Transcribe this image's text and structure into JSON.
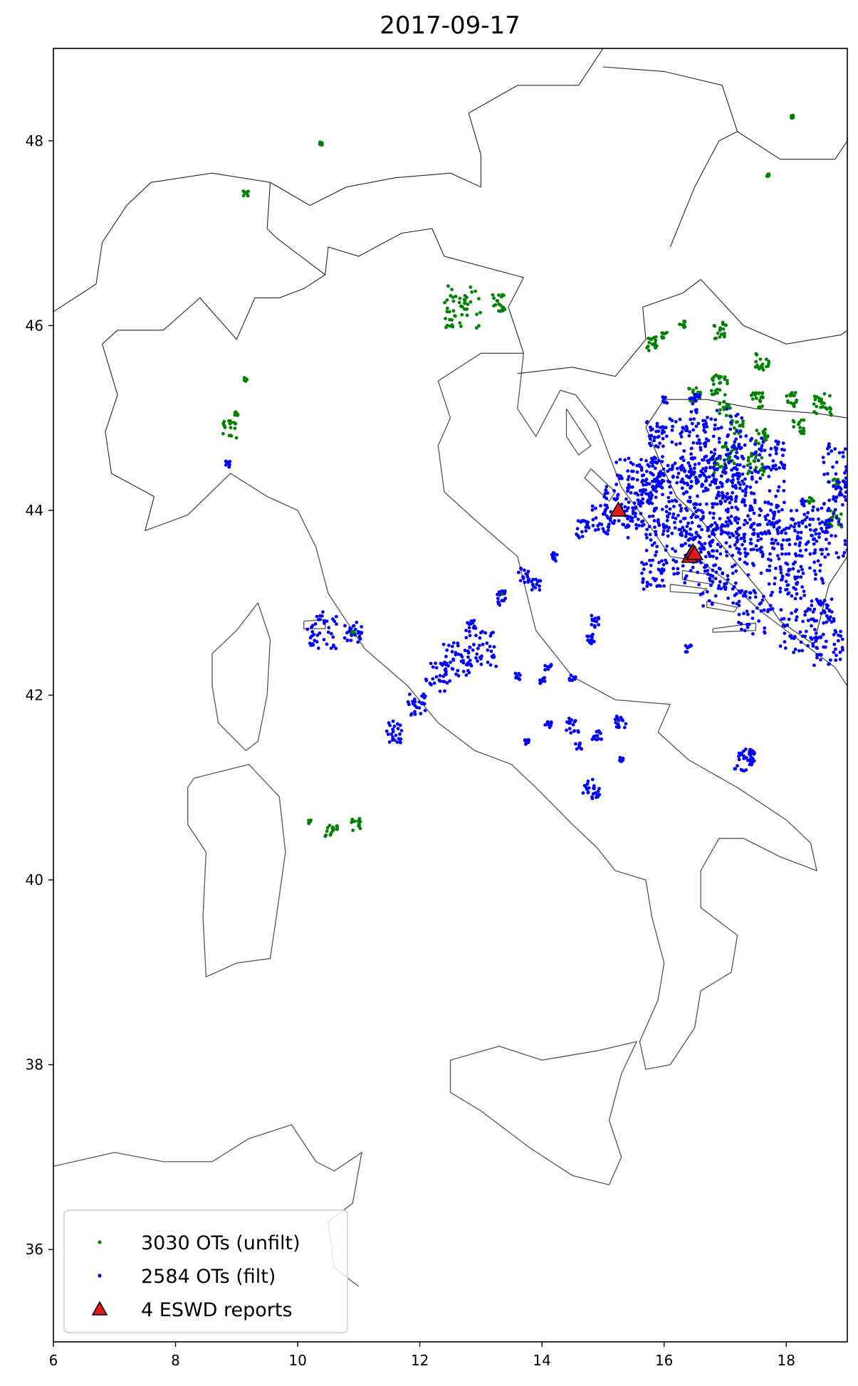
{
  "chart_data": {
    "type": "scatter",
    "title": "2017-09-17",
    "xlim": [
      6,
      19
    ],
    "ylim": [
      35,
      49
    ],
    "xticks": [
      6,
      8,
      10,
      12,
      14,
      16,
      18
    ],
    "yticks": [
      36,
      38,
      40,
      42,
      44,
      46,
      48
    ],
    "grid": false,
    "legend_position": "lower-left",
    "series": [
      {
        "name": "3030 OTs (unfilt)",
        "color": "#008000",
        "marker": "point",
        "clusters": [
          [
            8.9,
            44.88,
            0.12
          ],
          [
            9.0,
            45.05,
            0.03
          ],
          [
            9.15,
            45.42,
            0.03
          ],
          [
            9.15,
            47.43,
            0.04
          ],
          [
            10.38,
            47.97,
            0.02
          ],
          [
            12.7,
            46.2,
            0.3
          ],
          [
            13.3,
            46.25,
            0.12
          ],
          [
            10.55,
            40.55,
            0.1
          ],
          [
            10.2,
            40.63,
            0.03
          ],
          [
            10.95,
            40.6,
            0.08
          ],
          [
            13.35,
            43.1,
            0.03
          ],
          [
            10.9,
            42.68,
            0.05
          ],
          [
            15.8,
            45.8,
            0.1
          ],
          [
            16.3,
            46.02,
            0.05
          ],
          [
            16.0,
            45.9,
            0.05
          ],
          [
            16.9,
            45.95,
            0.12
          ],
          [
            17.6,
            45.6,
            0.12
          ],
          [
            17.7,
            47.63,
            0.02
          ],
          [
            18.1,
            48.26,
            0.02
          ],
          [
            16.9,
            45.35,
            0.15
          ],
          [
            16.5,
            45.25,
            0.1
          ],
          [
            17.0,
            45.1,
            0.1
          ],
          [
            17.5,
            45.2,
            0.12
          ],
          [
            18.1,
            45.2,
            0.1
          ],
          [
            18.6,
            45.15,
            0.15
          ],
          [
            17.2,
            44.9,
            0.1
          ],
          [
            17.6,
            44.8,
            0.1
          ],
          [
            18.2,
            44.9,
            0.1
          ],
          [
            17.0,
            44.55,
            0.2
          ],
          [
            17.5,
            44.5,
            0.15
          ],
          [
            18.8,
            44.3,
            0.06
          ],
          [
            18.8,
            43.9,
            0.12
          ],
          [
            18.4,
            44.1,
            0.05
          ]
        ]
      },
      {
        "name": "2584 OTs (filt)",
        "color": "#0000ff",
        "marker": "point",
        "clusters": [
          [
            10.4,
            42.7,
            0.25
          ],
          [
            10.9,
            42.68,
            0.15
          ],
          [
            8.85,
            44.5,
            0.04
          ],
          [
            11.6,
            41.6,
            0.15
          ],
          [
            11.95,
            41.9,
            0.15
          ],
          [
            12.3,
            42.2,
            0.2
          ],
          [
            12.6,
            42.4,
            0.25
          ],
          [
            13.0,
            42.5,
            0.25
          ],
          [
            12.85,
            42.75,
            0.08
          ],
          [
            13.3,
            43.05,
            0.1
          ],
          [
            13.7,
            43.3,
            0.1
          ],
          [
            13.9,
            43.2,
            0.08
          ],
          [
            14.2,
            43.5,
            0.06
          ],
          [
            13.6,
            42.2,
            0.05
          ],
          [
            14.0,
            42.15,
            0.05
          ],
          [
            14.1,
            42.3,
            0.05
          ],
          [
            14.5,
            42.2,
            0.05
          ],
          [
            14.8,
            42.6,
            0.08
          ],
          [
            14.85,
            42.8,
            0.08
          ],
          [
            14.1,
            41.68,
            0.06
          ],
          [
            14.5,
            41.67,
            0.1
          ],
          [
            14.9,
            41.58,
            0.08
          ],
          [
            15.3,
            41.72,
            0.1
          ],
          [
            14.6,
            41.45,
            0.05
          ],
          [
            14.8,
            41.0,
            0.15
          ],
          [
            13.75,
            41.5,
            0.04
          ],
          [
            15.3,
            41.3,
            0.03
          ],
          [
            17.3,
            41.3,
            0.15
          ],
          [
            17.4,
            41.35,
            0.1
          ],
          [
            14.65,
            43.8,
            0.12
          ],
          [
            15.0,
            43.9,
            0.2
          ],
          [
            15.3,
            44.05,
            0.3
          ],
          [
            15.6,
            44.25,
            0.4
          ],
          [
            15.9,
            44.1,
            0.5
          ],
          [
            16.2,
            43.9,
            0.6
          ],
          [
            16.6,
            44.2,
            0.7
          ],
          [
            17.0,
            43.9,
            0.6
          ],
          [
            17.4,
            44.0,
            0.6
          ],
          [
            17.8,
            43.7,
            0.5
          ],
          [
            18.2,
            43.6,
            0.5
          ],
          [
            18.6,
            43.8,
            0.4
          ],
          [
            18.9,
            44.5,
            0.3
          ],
          [
            16.2,
            44.6,
            0.5
          ],
          [
            16.8,
            44.7,
            0.5
          ],
          [
            17.2,
            44.5,
            0.4
          ],
          [
            16.5,
            43.5,
            0.4
          ],
          [
            16.9,
            43.2,
            0.3
          ],
          [
            17.5,
            42.9,
            0.3
          ],
          [
            18.2,
            42.7,
            0.3
          ],
          [
            18.7,
            42.5,
            0.25
          ],
          [
            18.6,
            42.9,
            0.2
          ],
          [
            15.8,
            43.3,
            0.2
          ],
          [
            16.0,
            45.2,
            0.05
          ],
          [
            16.5,
            45.2,
            0.08
          ],
          [
            15.9,
            44.8,
            0.15
          ],
          [
            18.1,
            43.2,
            0.2
          ],
          [
            18.9,
            44.2,
            0.15
          ],
          [
            17.8,
            44.6,
            0.2
          ],
          [
            16.4,
            42.5,
            0.05
          ]
        ]
      },
      {
        "name": "4 ESWD reports",
        "color": "#e31a1c",
        "marker": "triangle",
        "points": [
          [
            15.25,
            44.0
          ],
          [
            16.42,
            43.5
          ],
          [
            16.47,
            43.55
          ],
          [
            16.5,
            43.53
          ]
        ]
      }
    ]
  }
}
